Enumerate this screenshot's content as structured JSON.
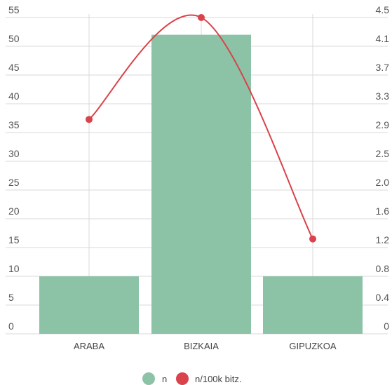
{
  "chart_data": {
    "type": "bar",
    "categories": [
      "ARABA",
      "BIZKAIA",
      "GIPUZKOA"
    ],
    "series": [
      {
        "name": "n",
        "type": "bar",
        "axis": "left",
        "color": "#8cc2a6",
        "values": [
          10,
          52,
          10
        ]
      },
      {
        "name": "n/100k bitz.",
        "type": "line",
        "axis": "right",
        "color": "#d9434b",
        "values": [
          3.05,
          4.5,
          1.35
        ]
      }
    ],
    "y_left": {
      "ticks": [
        "0",
        "5",
        "10",
        "15",
        "20",
        "25",
        "30",
        "35",
        "40",
        "45",
        "50",
        "55"
      ],
      "ylim": [
        0,
        55
      ]
    },
    "y_right": {
      "ticks": [
        "0",
        "0.4",
        "0.8",
        "1.2",
        "1.6",
        "2.0",
        "2.5",
        "2.9",
        "3.3",
        "3.7",
        "4.1",
        "4.5"
      ],
      "ylim": [
        0,
        4.5
      ]
    },
    "grid": true,
    "legend_position": "bottom"
  }
}
